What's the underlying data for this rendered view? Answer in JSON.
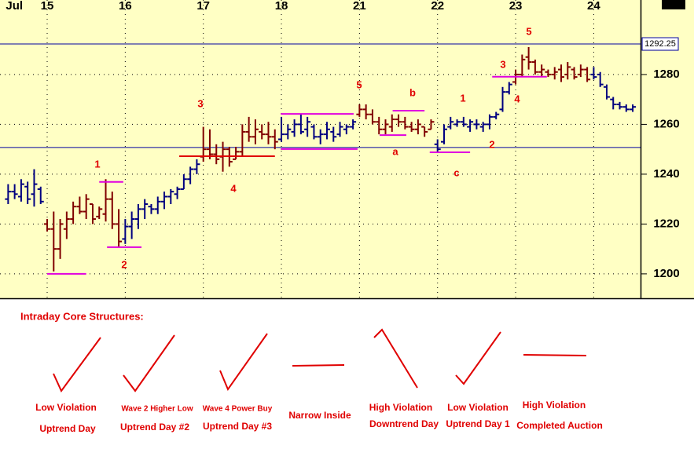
{
  "chart_data": {
    "type": "ohlc",
    "xlim": [
      -1.25,
      97.2
    ],
    "xticks": [
      {
        "value": -0.6,
        "label": "Jul"
      },
      {
        "value": 6,
        "label": "15"
      },
      {
        "value": 18,
        "label": "16"
      },
      {
        "value": 30,
        "label": "17"
      },
      {
        "value": 42,
        "label": "18"
      },
      {
        "value": 54,
        "label": "21"
      },
      {
        "value": 66,
        "label": "22"
      },
      {
        "value": 78,
        "label": "23"
      },
      {
        "value": 90,
        "label": "24"
      }
    ],
    "ylim": [
      1190.2,
      1309.9
    ],
    "yticks": [
      1200,
      1220,
      1240,
      1260,
      1280
    ],
    "grid": true,
    "bars": [
      [
        1230,
        1236,
        1228,
        1233
      ],
      [
        1233,
        1236,
        1230,
        1232
      ],
      [
        1231,
        1238,
        1229,
        1236
      ],
      [
        1235,
        1237,
        1228,
        1230
      ],
      [
        1232,
        1242,
        1227,
        1236
      ],
      [
        1234,
        1235,
        1228,
        1229
      ],
      [
        1220,
        1222,
        1217,
        1218
      ],
      [
        1218,
        1225,
        1201,
        1210
      ],
      [
        1210,
        1222,
        1206,
        1220
      ],
      [
        1218,
        1225,
        1214,
        1222
      ],
      [
        1222,
        1229,
        1220,
        1227
      ],
      [
        1227,
        1231,
        1224,
        1225
      ],
      [
        1225,
        1232,
        1222,
        1230
      ],
      [
        1228,
        1228,
        1220,
        1222
      ],
      [
        1223,
        1227,
        1222,
        1226
      ],
      [
        1224,
        1238,
        1221,
        1230
      ],
      [
        1230,
        1233,
        1218,
        1220
      ],
      [
        1220,
        1226,
        1211,
        1213
      ],
      [
        1214,
        1222,
        1212,
        1219
      ],
      [
        1219,
        1225,
        1214,
        1222
      ],
      [
        1222,
        1228,
        1218,
        1226
      ],
      [
        1226,
        1230,
        1222,
        1228
      ],
      [
        1227,
        1228,
        1224,
        1226
      ],
      [
        1226,
        1231,
        1224,
        1229
      ],
      [
        1229,
        1233,
        1226,
        1231
      ],
      [
        1231,
        1234,
        1228,
        1233
      ],
      [
        1232,
        1235,
        1230,
        1234
      ],
      [
        1234,
        1240,
        1234,
        1238
      ],
      [
        1238,
        1243,
        1236,
        1242
      ],
      [
        1242,
        1246,
        1240,
        1244
      ],
      [
        1247,
        1259,
        1245,
        1250
      ],
      [
        1250,
        1258,
        1246,
        1248
      ],
      [
        1248,
        1252,
        1244,
        1246
      ],
      [
        1247,
        1253,
        1241,
        1250
      ],
      [
        1250,
        1251,
        1243,
        1245
      ],
      [
        1246,
        1251,
        1246,
        1249
      ],
      [
        1249,
        1260,
        1247,
        1257
      ],
      [
        1257,
        1263,
        1253,
        1255
      ],
      [
        1255,
        1262,
        1252,
        1258
      ],
      [
        1257,
        1260,
        1254,
        1256
      ],
      [
        1256,
        1261,
        1252,
        1255
      ],
      [
        1255,
        1258,
        1250,
        1253
      ],
      [
        1254,
        1263,
        1253,
        1256
      ],
      [
        1256,
        1260,
        1254,
        1258
      ],
      [
        1257,
        1262,
        1255,
        1260
      ],
      [
        1260,
        1264,
        1256,
        1257
      ],
      [
        1258,
        1263,
        1255,
        1261
      ],
      [
        1259,
        1260,
        1254,
        1255
      ],
      [
        1255,
        1258,
        1252,
        1256
      ],
      [
        1256,
        1261,
        1254,
        1258
      ],
      [
        1257,
        1259,
        1253,
        1255
      ],
      [
        1256,
        1261,
        1255,
        1259
      ],
      [
        1258,
        1260,
        1256,
        1259
      ],
      [
        1259,
        1262,
        1258,
        1261
      ],
      [
        1264,
        1268,
        1263,
        1266
      ],
      [
        1266,
        1268,
        1262,
        1264
      ],
      [
        1264,
        1266,
        1260,
        1261
      ],
      [
        1261,
        1263,
        1256,
        1258
      ],
      [
        1258,
        1262,
        1256,
        1260
      ],
      [
        1259,
        1264,
        1257,
        1262
      ],
      [
        1262,
        1264,
        1259,
        1261
      ],
      [
        1261,
        1263,
        1258,
        1259
      ],
      [
        1259,
        1261,
        1257,
        1258
      ],
      [
        1258,
        1262,
        1256,
        1260
      ],
      [
        1259,
        1259,
        1255,
        1257
      ],
      [
        1258,
        1262,
        1258,
        1261
      ],
      [
        1252,
        1254,
        1249,
        1250
      ],
      [
        1253,
        1260,
        1252,
        1258
      ],
      [
        1259,
        1263,
        1258,
        1261
      ],
      [
        1260,
        1262,
        1259,
        1261
      ],
      [
        1261,
        1263,
        1259,
        1260
      ],
      [
        1259,
        1262,
        1257,
        1261
      ],
      [
        1260,
        1262,
        1258,
        1260
      ],
      [
        1259,
        1261,
        1257,
        1260
      ],
      [
        1260,
        1264,
        1258,
        1263
      ],
      [
        1263,
        1265,
        1262,
        1264
      ],
      [
        1266,
        1275,
        1265,
        1273
      ],
      [
        1273,
        1277,
        1272,
        1276
      ],
      [
        1277,
        1282,
        1276,
        1280
      ],
      [
        1280,
        1288,
        1279,
        1286
      ],
      [
        1287,
        1291,
        1282,
        1285
      ],
      [
        1285,
        1286,
        1280,
        1281
      ],
      [
        1281,
        1284,
        1279,
        1282
      ],
      [
        1281,
        1282,
        1279,
        1280
      ],
      [
        1280,
        1283,
        1278,
        1281
      ],
      [
        1282,
        1284,
        1277,
        1279
      ],
      [
        1280,
        1285,
        1278,
        1283
      ],
      [
        1282,
        1283,
        1278,
        1279
      ],
      [
        1280,
        1284,
        1279,
        1282
      ],
      [
        1282,
        1283,
        1277,
        1278
      ],
      [
        1280,
        1283,
        1278,
        1279
      ],
      [
        1280,
        1281,
        1275,
        1276
      ],
      [
        1275,
        1276,
        1270,
        1271
      ],
      [
        1270,
        1271,
        1266,
        1268
      ],
      [
        1268,
        1269,
        1266,
        1267
      ],
      [
        1267,
        1268,
        1265,
        1266
      ],
      [
        1266,
        1268,
        1265,
        1267
      ]
    ],
    "bar_colors": [
      "#000080",
      "#000080",
      "#000080",
      "#000080",
      "#000080",
      "#000080",
      "#800000",
      "#800000",
      "#800000",
      "#800000",
      "#800000",
      "#800000",
      "#800000",
      "#800000",
      "#800000",
      "#800000",
      "#800000",
      "#800000",
      "#000080",
      "#000080",
      "#000080",
      "#000080",
      "#000080",
      "#000080",
      "#000080",
      "#000080",
      "#000080",
      "#000080",
      "#000080",
      "#000080",
      "#800000",
      "#800000",
      "#800000",
      "#800000",
      "#800000",
      "#800000",
      "#800000",
      "#800000",
      "#800000",
      "#800000",
      "#800000",
      "#800000",
      "#000080",
      "#000080",
      "#000080",
      "#000080",
      "#000080",
      "#000080",
      "#000080",
      "#000080",
      "#000080",
      "#000080",
      "#000080",
      "#000080",
      "#800000",
      "#800000",
      "#800000",
      "#800000",
      "#800000",
      "#800000",
      "#800000",
      "#800000",
      "#800000",
      "#800000",
      "#800000",
      "#800000",
      "#000080",
      "#000080",
      "#000080",
      "#000080",
      "#000080",
      "#000080",
      "#000080",
      "#000080",
      "#000080",
      "#000080",
      "#000080",
      "#000080",
      "#800000",
      "#800000",
      "#800000",
      "#800000",
      "#800000",
      "#800000",
      "#800000",
      "#800000",
      "#800000",
      "#800000",
      "#800000",
      "#800000",
      "#000080",
      "#000080",
      "#000080",
      "#000080",
      "#000080",
      "#000080",
      "#000080"
    ],
    "price_lines": [
      1292.25,
      1250.7
    ],
    "price_line_color": "#0000a0",
    "levels": [
      {
        "value": 1200,
        "x": [
          6,
          12
        ],
        "color": "#e000e0"
      },
      {
        "value": 1236.9,
        "x": [
          14,
          17.7
        ],
        "color": "#e000e0"
      },
      {
        "value": 1210.7,
        "x": [
          15.2,
          20.5
        ],
        "color": "#e000e0"
      },
      {
        "value": 1247.2,
        "x": [
          26.3,
          41
        ],
        "color": "#e00000"
      },
      {
        "value": 1264.2,
        "x": [
          41.9,
          53.1
        ],
        "color": "#e000e0"
      },
      {
        "value": 1250.1,
        "x": [
          41.9,
          53.7
        ],
        "color": "#e000e0"
      },
      {
        "value": 1255.7,
        "x": [
          57.1,
          61.2
        ],
        "color": "#e000e0"
      },
      {
        "value": 1265.5,
        "x": [
          59.1,
          64
        ],
        "color": "#e000e0"
      },
      {
        "value": 1248.8,
        "x": [
          64.8,
          71
        ],
        "color": "#e000e0"
      },
      {
        "value": 1279.1,
        "x": [
          74.4,
          82.8
        ],
        "color": "#e000e0"
      }
    ],
    "annotations": [
      "1",
      "2",
      "3",
      "4",
      "5",
      "a",
      "b",
      "c",
      "1",
      "2",
      "3",
      "4",
      "5"
    ]
  },
  "structures": {
    "title": "Intraday Core Structures:",
    "items": [
      [
        "Low Violation",
        "Uptrend Day"
      ],
      [
        "Wave 2 Higher Low",
        "Uptrend Day #2"
      ],
      [
        "Wave 4 Power Buy",
        "Uptrend Day #3"
      ],
      [
        "Narrow Inside"
      ],
      [
        "High Violation",
        "Downtrend Day"
      ],
      [
        "Low Violation",
        "Uptrend Day 1"
      ],
      [
        "High Violation",
        "Completed Auction"
      ]
    ]
  }
}
